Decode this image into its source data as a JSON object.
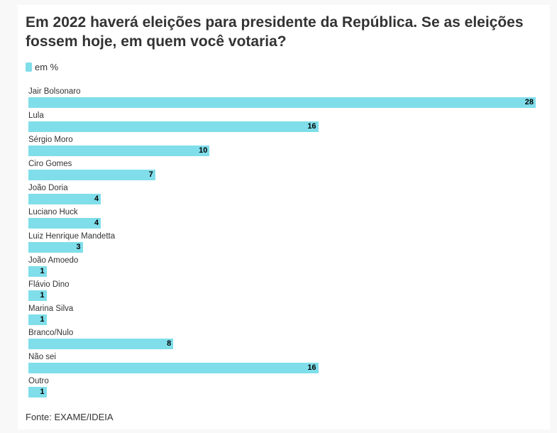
{
  "title": "Em 2022 haverá eleições para presidente da República. Se as eleições fossem hoje, em quem você votaria?",
  "legend": {
    "label": "em %",
    "color": "#7fdeea"
  },
  "source": "Fonte: EXAME/IDEIA",
  "chart_data": {
    "type": "bar",
    "orientation": "horizontal",
    "title": "Em 2022 haverá eleições para presidente da República. Se as eleições fossem hoje, em quem você votaria?",
    "xlabel": "",
    "ylabel": "",
    "unit": "em %",
    "xlim": [
      0,
      28
    ],
    "grid": false,
    "legend_position": "top-left",
    "series": [
      {
        "name": "em %",
        "color": "#7fdeea"
      }
    ],
    "categories": [
      "Jair Bolsonaro",
      "Lula",
      "Sérgio Moro",
      "Ciro Gomes",
      "João Doria",
      "Luciano Huck",
      "Luiz Henrique Mandetta",
      "João Amoedo",
      "Flávio Dino",
      "Marina Silva",
      "Branco/Nulo",
      "Não sei",
      "Outro"
    ],
    "values": [
      28,
      16,
      10,
      7,
      4,
      4,
      3,
      1,
      1,
      1,
      8,
      16,
      1
    ]
  }
}
